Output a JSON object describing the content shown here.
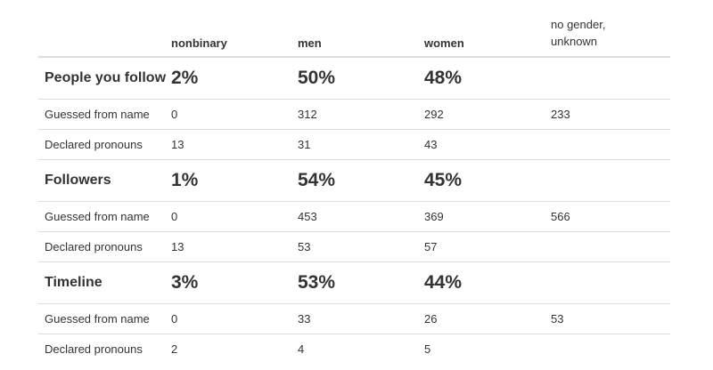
{
  "columns": {
    "col0": "",
    "col1": "nonbinary",
    "col2": "men",
    "col3": "women",
    "col4_line1": "no gender,",
    "col4_line2": "unknown"
  },
  "sections": [
    {
      "title": "People you follow",
      "pct": [
        "2%",
        "50%",
        "48%",
        ""
      ],
      "guessed": {
        "label": "Guessed from name",
        "values": [
          "0",
          "312",
          "292",
          "233"
        ]
      },
      "declared": {
        "label": "Declared pronouns",
        "values": [
          "13",
          "31",
          "43",
          ""
        ]
      }
    },
    {
      "title": "Followers",
      "pct": [
        "1%",
        "54%",
        "45%",
        ""
      ],
      "guessed": {
        "label": "Guessed from name",
        "values": [
          "0",
          "453",
          "369",
          "566"
        ]
      },
      "declared": {
        "label": "Declared pronouns",
        "values": [
          "13",
          "53",
          "57",
          ""
        ]
      }
    },
    {
      "title": "Timeline",
      "pct": [
        "3%",
        "53%",
        "44%",
        ""
      ],
      "guessed": {
        "label": "Guessed from name",
        "values": [
          "0",
          "33",
          "26",
          "53"
        ]
      },
      "declared": {
        "label": "Declared pronouns",
        "values": [
          "2",
          "4",
          "5",
          ""
        ]
      }
    }
  ]
}
